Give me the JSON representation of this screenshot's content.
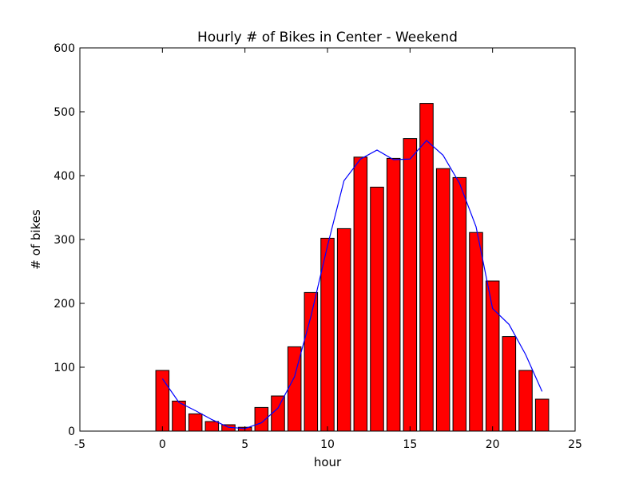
{
  "chart_data": {
    "type": "bar",
    "title": "Hourly # of Bikes in Center - Weekend",
    "xlabel": "hour",
    "ylabel": "# of bikes",
    "xlim": [
      -5,
      25
    ],
    "ylim": [
      0,
      600
    ],
    "x_ticks": [
      -5,
      0,
      5,
      10,
      15,
      20,
      25
    ],
    "y_ticks": [
      0,
      100,
      200,
      300,
      400,
      500,
      600
    ],
    "grid": false,
    "bar_color": "#ff0000",
    "line_color": "#0000ff",
    "series": [
      {
        "kind": "bar",
        "x": [
          0,
          1,
          2,
          3,
          4,
          5,
          6,
          7,
          8,
          9,
          10,
          11,
          12,
          13,
          14,
          15,
          16,
          17,
          18,
          19,
          20,
          21,
          22,
          23
        ],
        "values": [
          95,
          47,
          27,
          15,
          10,
          6,
          37,
          55,
          132,
          217,
          302,
          317,
          429,
          382,
          427,
          458,
          513,
          411,
          397,
          311,
          235,
          148,
          95,
          50
        ]
      },
      {
        "kind": "line",
        "x": [
          0,
          1,
          2,
          3,
          4,
          5,
          6,
          7,
          8,
          9,
          10,
          11,
          12,
          13,
          14,
          15,
          16,
          17,
          18,
          19,
          20,
          21,
          22,
          23
        ],
        "values": [
          82,
          45,
          32,
          18,
          6,
          4,
          13,
          36,
          85,
          180,
          290,
          392,
          426,
          440,
          425,
          426,
          455,
          432,
          388,
          320,
          192,
          167,
          120,
          62
        ]
      }
    ]
  }
}
